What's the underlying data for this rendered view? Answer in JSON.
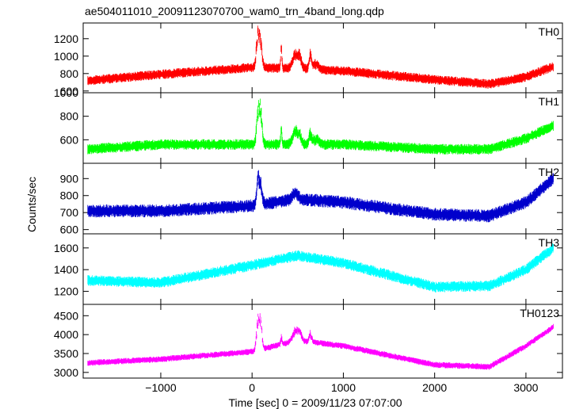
{
  "chart_data": {
    "type": "line",
    "title": "ae504011010_20091123070700_wam0_trn_4band_long.qdp",
    "xlabel": "Time [sec] 0 = 2009/11/23 07:07:00",
    "ylabel": "Counts/sec",
    "xlim": [
      -1850,
      3400
    ],
    "xticks": [
      -1000,
      0,
      1000,
      2000,
      3000
    ],
    "xtick_labels": [
      "−1000",
      "0",
      "1000",
      "2000",
      "3000"
    ],
    "panels": [
      {
        "name": "TH0",
        "color": "#ff0000",
        "ylim": [
          580,
          1380
        ],
        "yticks": [
          600,
          800,
          1000,
          1200
        ],
        "ytick_labels": [
          "600",
          "800",
          "1000",
          "1200"
        ],
        "noise": 55,
        "trend": {
          "x": [
            -1800,
            -1000,
            0,
            500,
            1000,
            2000,
            2600,
            3000,
            3300
          ],
          "y": [
            720,
            790,
            870,
            860,
            830,
            730,
            680,
            760,
            880
          ]
        },
        "spikes": [
          [
            60,
            380,
            20
          ],
          [
            90,
            380,
            25
          ],
          [
            320,
            250,
            10
          ],
          [
            470,
            180,
            40
          ],
          [
            520,
            150,
            30
          ],
          [
            640,
            180,
            20
          ],
          [
            700,
            80,
            40
          ]
        ]
      },
      {
        "name": "TH1",
        "color": "#00ff00",
        "ylim": [
          400,
          1000
        ],
        "yticks": [
          600,
          800,
          1000
        ],
        "ytick_labels": [
          "600",
          "800",
          "1000"
        ],
        "noise": 45,
        "trend": {
          "x": [
            -1800,
            -1000,
            0,
            500,
            1000,
            2000,
            2600,
            3000,
            3300
          ],
          "y": [
            520,
            560,
            560,
            560,
            560,
            520,
            520,
            610,
            720
          ]
        },
        "spikes": [
          [
            60,
            230,
            20
          ],
          [
            90,
            380,
            25
          ],
          [
            320,
            150,
            10
          ],
          [
            470,
            120,
            40
          ],
          [
            520,
            90,
            30
          ],
          [
            640,
            120,
            20
          ],
          [
            700,
            60,
            40
          ]
        ]
      },
      {
        "name": "TH2",
        "color": "#0000cc",
        "ylim": [
          575,
          990
        ],
        "yticks": [
          600,
          700,
          800,
          900
        ],
        "ytick_labels": [
          "600",
          "700",
          "800",
          "900"
        ],
        "noise": 38,
        "trend": {
          "x": [
            -1800,
            -1000,
            0,
            500,
            1000,
            2000,
            2600,
            3000,
            3300
          ],
          "y": [
            710,
            710,
            740,
            780,
            760,
            690,
            680,
            760,
            900
          ]
        },
        "spikes": [
          [
            60,
            130,
            20
          ],
          [
            90,
            170,
            25
          ],
          [
            470,
            50,
            40
          ]
        ]
      },
      {
        "name": "TH3",
        "color": "#00ffff",
        "ylim": [
          1080,
          1730
        ],
        "yticks": [
          1200,
          1400,
          1600
        ],
        "ytick_labels": [
          "1200",
          "1400",
          "1600"
        ],
        "noise": 50,
        "trend": {
          "x": [
            -1800,
            -1000,
            0,
            500,
            1000,
            2000,
            2600,
            3000,
            3300
          ],
          "y": [
            1300,
            1280,
            1440,
            1530,
            1460,
            1240,
            1250,
            1400,
            1600
          ]
        },
        "spikes": []
      },
      {
        "name": "TH0123",
        "color": "#ff00ff",
        "ylim": [
          2850,
          4800
        ],
        "yticks": [
          3000,
          3500,
          4000,
          4500
        ],
        "ytick_labels": [
          "3000",
          "3500",
          "4000",
          "4500"
        ],
        "noise": 80,
        "trend": {
          "x": [
            -1800,
            -1000,
            0,
            500,
            1000,
            2000,
            2600,
            3000,
            3300
          ],
          "y": [
            3250,
            3350,
            3550,
            3850,
            3700,
            3200,
            3150,
            3700,
            4200
          ]
        },
        "spikes": [
          [
            60,
            700,
            20
          ],
          [
            90,
            900,
            25
          ],
          [
            320,
            250,
            10
          ],
          [
            470,
            300,
            40
          ],
          [
            520,
            250,
            30
          ],
          [
            640,
            250,
            20
          ]
        ]
      }
    ]
  }
}
